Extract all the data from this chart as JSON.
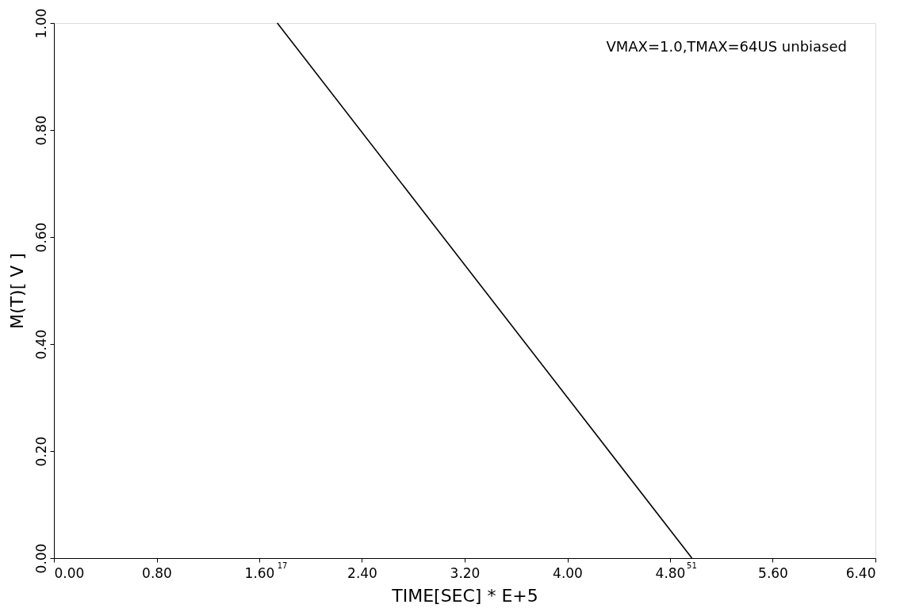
{
  "chart_data": {
    "type": "line",
    "xlabel": "TIME[SEC]    * E+5",
    "ylabel": "M(T)[ V ]",
    "x": [
      1.74,
      4.97
    ],
    "series": [
      {
        "color": "#000000",
        "values": [
          1.0,
          0.0
        ]
      }
    ],
    "xlim": [
      0,
      6.4
    ],
    "ylim": [
      0,
      1.0
    ],
    "xticks": [
      {
        "value": 0,
        "label": "0.00"
      },
      {
        "value": 0.8,
        "label": "0.80"
      },
      {
        "value": 1.6,
        "label": "1.60"
      },
      {
        "value": 2.4,
        "label": "2.40"
      },
      {
        "value": 3.2,
        "label": "3.20"
      },
      {
        "value": 4.0,
        "label": "4.00"
      },
      {
        "value": 4.8,
        "label": "4.80"
      },
      {
        "value": 5.6,
        "label": "5.60"
      },
      {
        "value": 6.4,
        "label": "6.40"
      }
    ],
    "yticks": [
      {
        "value": 0,
        "label": "0.00"
      },
      {
        "value": 0.2,
        "label": "0.20"
      },
      {
        "value": 0.4,
        "label": "0.40"
      },
      {
        "value": 0.6,
        "label": "0.60"
      },
      {
        "value": 0.8,
        "label": "0.80"
      },
      {
        "value": 1.0,
        "label": "1.00"
      }
    ],
    "annotations": [
      "VMAX=1.0,TMAX=64US unbiased",
      "17",
      "51"
    ],
    "grid": false,
    "marker": "none",
    "line_style": "solid"
  }
}
